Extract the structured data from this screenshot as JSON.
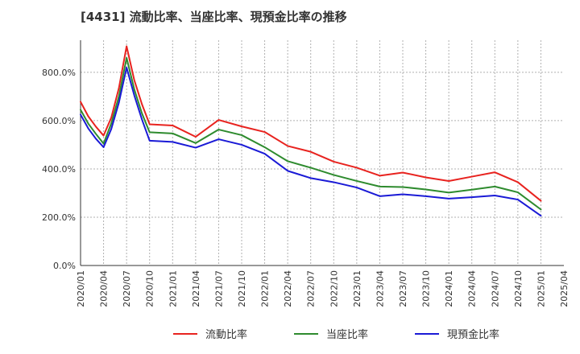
{
  "chart_data": {
    "type": "line",
    "title": "[4431]  流動比率、当座比率、現預金比率の推移",
    "xlabel": "",
    "ylabel": "",
    "ylim": [
      0,
      933
    ],
    "y_ticks": [
      0,
      200,
      400,
      600,
      800
    ],
    "y_tick_labels": [
      "0.0%",
      "200.0%",
      "400.0%",
      "600.0%",
      "800.0%"
    ],
    "x_start": "2020/01",
    "x_end": "2025/04",
    "x_tick_labels": [
      "2020/01",
      "2020/04",
      "2020/07",
      "2020/10",
      "2021/01",
      "2021/04",
      "2021/07",
      "2021/10",
      "2022/01",
      "2022/04",
      "2022/07",
      "2022/10",
      "2023/01",
      "2023/04",
      "2023/07",
      "2023/10",
      "2024/01",
      "2024/04",
      "2024/07",
      "2024/10",
      "2025/01",
      "2025/04"
    ],
    "legend_position": "bottom",
    "grid": true,
    "series": [
      {
        "name": "流動比率",
        "color": "#e8231f",
        "x": [
          "2020/01",
          "2020/02",
          "2020/03",
          "2020/04",
          "2020/05",
          "2020/06",
          "2020/07",
          "2020/08",
          "2020/09",
          "2020/10",
          "2021/01",
          "2021/04",
          "2021/07",
          "2021/10",
          "2022/01",
          "2022/04",
          "2022/07",
          "2022/10",
          "2023/01",
          "2023/04",
          "2023/07",
          "2023/10",
          "2024/01",
          "2024/04",
          "2024/07",
          "2024/10",
          "2025/01"
        ],
        "values": [
          678,
          618,
          575,
          538,
          612,
          735,
          908,
          768,
          668,
          585,
          580,
          533,
          603,
          576,
          553,
          495,
          471,
          430,
          405,
          372,
          385,
          365,
          350,
          368,
          386,
          345,
          268
        ]
      },
      {
        "name": "当座比率",
        "color": "#2e8b2e",
        "x": [
          "2020/01",
          "2020/02",
          "2020/03",
          "2020/04",
          "2020/05",
          "2020/06",
          "2020/07",
          "2020/08",
          "2020/09",
          "2020/10",
          "2021/01",
          "2021/04",
          "2021/07",
          "2021/10",
          "2022/01",
          "2022/04",
          "2022/07",
          "2022/10",
          "2023/01",
          "2023/04",
          "2023/07",
          "2023/10",
          "2024/01",
          "2024/04",
          "2024/07",
          "2024/10",
          "2025/01"
        ],
        "values": [
          645,
          588,
          545,
          505,
          588,
          700,
          860,
          730,
          630,
          552,
          547,
          507,
          563,
          540,
          490,
          432,
          405,
          375,
          350,
          327,
          325,
          315,
          302,
          314,
          327,
          303,
          232
        ]
      },
      {
        "name": "現預金比率",
        "color": "#1a1ad6",
        "x": [
          "2020/01",
          "2020/02",
          "2020/03",
          "2020/04",
          "2020/05",
          "2020/06",
          "2020/07",
          "2020/08",
          "2020/09",
          "2020/10",
          "2021/01",
          "2021/04",
          "2021/07",
          "2021/10",
          "2022/01",
          "2022/04",
          "2022/07",
          "2022/10",
          "2023/01",
          "2023/04",
          "2023/07",
          "2023/10",
          "2024/01",
          "2024/04",
          "2024/07",
          "2024/10",
          "2025/01"
        ],
        "values": [
          625,
          568,
          525,
          490,
          565,
          675,
          820,
          705,
          605,
          517,
          512,
          488,
          523,
          500,
          463,
          392,
          362,
          345,
          323,
          287,
          295,
          287,
          277,
          283,
          290,
          273,
          206
        ]
      }
    ]
  }
}
